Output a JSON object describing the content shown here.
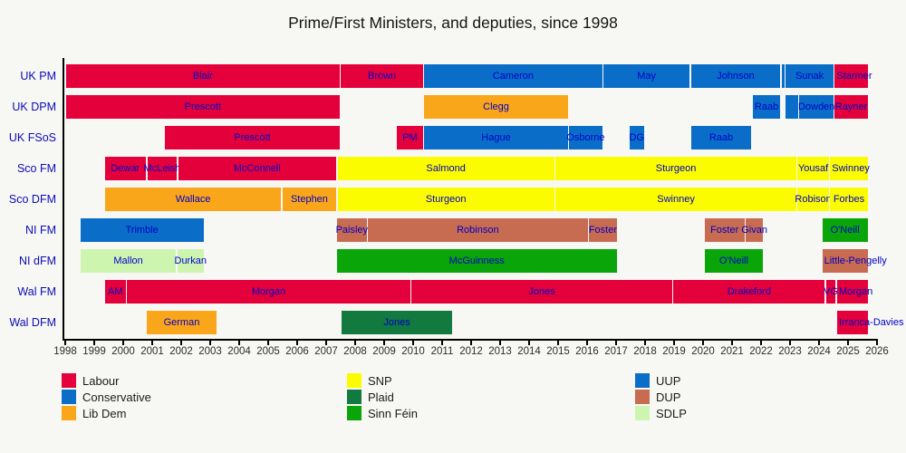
{
  "title": "Prime/First Ministers, and deputies, since 1998",
  "colors": {
    "background": "#f7f7f4",
    "bar_label_text": "#0000c8",
    "row_label_text": "#0b0bb8",
    "axis_line": "#000000",
    "tick_label_text": "#2d2d2d",
    "title_text": "#141414"
  },
  "chart_data": {
    "type": "bar",
    "subtype": "gantt-timeline",
    "title": "Prime/First Ministers, and deputies, since 1998",
    "x_axis": {
      "min": 1998,
      "max": 2026,
      "tick_years": [
        1998,
        1999,
        2000,
        2001,
        2002,
        2003,
        2004,
        2005,
        2006,
        2007,
        2008,
        2009,
        2010,
        2011,
        2012,
        2013,
        2014,
        2015,
        2016,
        2017,
        2018,
        2019,
        2020,
        2021,
        2022,
        2023,
        2024,
        2025,
        2026
      ]
    },
    "party_colors": {
      "Labour": "#e4003b",
      "Conservative": "#0a6ec8",
      "Lib Dem": "#faa61a",
      "SNP": "#fcfc00",
      "Plaid": "#12793f",
      "Sinn Féin": "#09a509",
      "UUP": "#0a6ec8",
      "DUP": "#c76b51",
      "SDLP": "#cdf5b0"
    },
    "legend_columns": [
      [
        "Labour",
        "Conservative",
        "Lib Dem"
      ],
      [
        "SNP",
        "Plaid",
        "Sinn Féin"
      ],
      [
        "UUP",
        "DUP",
        "SDLP"
      ]
    ],
    "rows": [
      {
        "label": "UK PM",
        "bars": [
          {
            "name": "Blair",
            "party": "Labour",
            "start": 1998.0,
            "end": 2007.49
          },
          {
            "name": "Brown",
            "party": "Labour",
            "start": 2007.49,
            "end": 2010.36
          },
          {
            "name": "Cameron",
            "party": "Conservative",
            "start": 2010.36,
            "end": 2016.54
          },
          {
            "name": "May",
            "party": "Conservative",
            "start": 2016.54,
            "end": 2019.56
          },
          {
            "name": "Johnson",
            "party": "Conservative",
            "start": 2019.56,
            "end": 2022.69
          },
          {
            "name": "",
            "party": "Conservative",
            "start": 2022.69,
            "end": 2022.83
          },
          {
            "name": "Sunak",
            "party": "Conservative",
            "start": 2022.83,
            "end": 2024.52
          },
          {
            "name": "Starmer",
            "party": "Labour",
            "start": 2024.52,
            "end": 2025.7
          }
        ]
      },
      {
        "label": "UK DPM",
        "bars": [
          {
            "name": "Prescott",
            "party": "Labour",
            "start": 1998.0,
            "end": 2007.49
          },
          {
            "name": "Clegg",
            "party": "Lib Dem",
            "start": 2010.36,
            "end": 2015.36
          },
          {
            "name": "Raab",
            "party": "Conservative",
            "start": 2021.69,
            "end": 2022.69
          },
          {
            "name": "",
            "party": "Conservative",
            "start": 2022.83,
            "end": 2023.3
          },
          {
            "name": "Dowden",
            "party": "Conservative",
            "start": 2023.3,
            "end": 2024.52
          },
          {
            "name": "Rayner",
            "party": "Labour",
            "start": 2024.52,
            "end": 2025.7
          }
        ]
      },
      {
        "label": "UK FSoS",
        "bars": [
          {
            "name": "Prescott",
            "party": "Labour",
            "start": 2001.42,
            "end": 2007.49
          },
          {
            "name": "PM",
            "party": "Labour",
            "start": 2009.42,
            "end": 2010.36
          },
          {
            "name": "Hague",
            "party": "Conservative",
            "start": 2010.36,
            "end": 2015.36
          },
          {
            "name": "Osborne",
            "party": "Conservative",
            "start": 2015.36,
            "end": 2016.54
          },
          {
            "name": "DG",
            "party": "Conservative",
            "start": 2017.44,
            "end": 2017.98
          },
          {
            "name": "Raab",
            "party": "Conservative",
            "start": 2019.56,
            "end": 2021.69
          }
        ]
      },
      {
        "label": "Sco FM",
        "bars": [
          {
            "name": "Dewar",
            "party": "Labour",
            "start": 1999.35,
            "end": 2000.79
          },
          {
            "name": "McLeish",
            "party": "Labour",
            "start": 2000.82,
            "end": 2001.87
          },
          {
            "name": "McConnell",
            "party": "Labour",
            "start": 2001.87,
            "end": 2007.37
          },
          {
            "name": "Salmond",
            "party": "SNP",
            "start": 2007.37,
            "end": 2014.89
          },
          {
            "name": "Sturgeon",
            "party": "SNP",
            "start": 2014.89,
            "end": 2023.24
          },
          {
            "name": "Yousaf",
            "party": "SNP",
            "start": 2023.24,
            "end": 2024.36
          },
          {
            "name": "Swinney",
            "party": "SNP",
            "start": 2024.36,
            "end": 2025.7
          }
        ]
      },
      {
        "label": "Sco DFM",
        "bars": [
          {
            "name": "Wallace",
            "party": "Lib Dem",
            "start": 1999.35,
            "end": 2005.47
          },
          {
            "name": "Stephen",
            "party": "Lib Dem",
            "start": 2005.47,
            "end": 2007.37
          },
          {
            "name": "Sturgeon",
            "party": "SNP",
            "start": 2007.37,
            "end": 2014.89
          },
          {
            "name": "Swinney",
            "party": "SNP",
            "start": 2014.89,
            "end": 2023.24
          },
          {
            "name": "Robison",
            "party": "SNP",
            "start": 2023.24,
            "end": 2024.36
          },
          {
            "name": "Forbes",
            "party": "SNP",
            "start": 2024.36,
            "end": 2025.7
          }
        ]
      },
      {
        "label": "NI FM",
        "bars": [
          {
            "name": "Trimble",
            "party": "UUP",
            "start": 1998.5,
            "end": 2002.79
          },
          {
            "name": "Paisley",
            "party": "DUP",
            "start": 2007.35,
            "end": 2008.42
          },
          {
            "name": "Robinson",
            "party": "DUP",
            "start": 2008.42,
            "end": 2016.04
          },
          {
            "name": "Foster",
            "party": "DUP",
            "start": 2016.04,
            "end": 2017.05
          },
          {
            "name": "Foster",
            "party": "DUP",
            "start": 2020.03,
            "end": 2021.45
          },
          {
            "name": "Givan",
            "party": "DUP",
            "start": 2021.45,
            "end": 2022.09
          },
          {
            "name": "O'Neill",
            "party": "Sinn Féin",
            "start": 2024.09,
            "end": 2025.7
          }
        ]
      },
      {
        "label": "NI dFM",
        "bars": [
          {
            "name": "Mallon",
            "party": "SDLP",
            "start": 1998.5,
            "end": 2001.85
          },
          {
            "name": "Durkan",
            "party": "SDLP",
            "start": 2001.85,
            "end": 2002.79
          },
          {
            "name": "McGuinness",
            "party": "Sinn Féin",
            "start": 2007.35,
            "end": 2017.04
          },
          {
            "name": "O'Neill",
            "party": "Sinn Féin",
            "start": 2020.03,
            "end": 2022.09
          },
          {
            "name": "Little-Pengelly",
            "party": "DUP",
            "start": 2024.09,
            "end": 2025.7
          }
        ]
      },
      {
        "label": "Wal FM",
        "bars": [
          {
            "name": "AM",
            "party": "Labour",
            "start": 1999.35,
            "end": 2000.11
          },
          {
            "name": "Morgan",
            "party": "Labour",
            "start": 2000.11,
            "end": 2009.92
          },
          {
            "name": "Jones",
            "party": "Labour",
            "start": 2009.92,
            "end": 2018.96
          },
          {
            "name": "Drakeford",
            "party": "Labour",
            "start": 2018.96,
            "end": 2024.22
          },
          {
            "name": "VG",
            "party": "Labour",
            "start": 2024.22,
            "end": 2024.6
          },
          {
            "name": "Morgan",
            "party": "Labour",
            "start": 2024.6,
            "end": 2025.7
          }
        ]
      },
      {
        "label": "Wal DFM",
        "bars": [
          {
            "name": "German",
            "party": "Lib Dem",
            "start": 2000.78,
            "end": 2003.25
          },
          {
            "name": "Jones",
            "party": "Plaid",
            "start": 2007.52,
            "end": 2011.36
          },
          {
            "name": "Irranca-Davies",
            "party": "Labour",
            "start": 2024.6,
            "end": 2025.7
          }
        ]
      }
    ]
  }
}
